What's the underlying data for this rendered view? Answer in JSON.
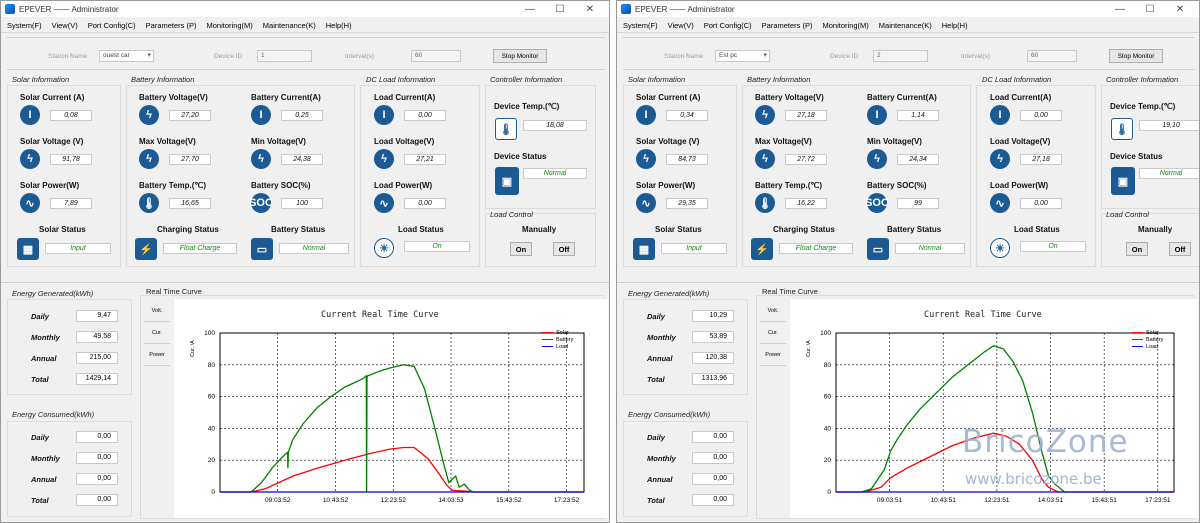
{
  "windows": [
    {
      "id": "L",
      "title": "EPEVER —— Administrator",
      "menu": [
        "System(F)",
        "View(V)",
        "Port Config(C)",
        "Parameters (P)",
        "Monitoring(M)",
        "Maintenance(K)",
        "Help(H)"
      ],
      "station": {
        "name_label": "Station Name",
        "name_value": "ouest car",
        "device_id_label": "Device ID",
        "device_id_value": "1",
        "interval_label": "Interval(s)",
        "interval_value": "60",
        "stop_button": "Stop Monitor"
      },
      "solar": {
        "title": "Solar Information",
        "current_label": "Solar Current (A)",
        "current": "0,08",
        "voltage_label": "Solar Voltage (V)",
        "voltage": "91,78",
        "power_label": "Solar Power(W)",
        "power": "7,89",
        "status_label": "Solar Status",
        "status": "Input"
      },
      "battery": {
        "title": "Battery Information",
        "voltage_label": "Battery Voltage(V)",
        "voltage": "27,20",
        "current_label": "Battery Current(A)",
        "current": "0,25",
        "max_label": "Max Voltage(V)",
        "max": "27,70",
        "min_label": "Min Voltage(V)",
        "min": "24,38",
        "temp_label": "Battery Temp.(℃)",
        "temp": "16,65",
        "soc_label": "Battery SOC(%)",
        "soc": "100",
        "charging_label": "Charging Status",
        "charging": "Float Charge",
        "status_label": "Battery Status",
        "status": "Normal"
      },
      "load": {
        "title": "DC Load Information",
        "current_label": "Load Current(A)",
        "current": "0,00",
        "voltage_label": "Load Voltage(V)",
        "voltage": "27,21",
        "power_label": "Load Power(W)",
        "power": "0,00",
        "status_label": "Load Status",
        "status": "On"
      },
      "controller": {
        "title": "Controller Information",
        "temp_label": "Device Temp.(℃)",
        "temp": "18,08",
        "status_label": "Device Status",
        "status": "Normal",
        "load_control_title": "Load Control",
        "manually_label": "Manually",
        "on_button": "On",
        "off_button": "Off"
      },
      "generated": {
        "title": "Energy Generated(kWh)",
        "daily_label": "Daily",
        "daily": "9,47",
        "monthly_label": "Monthly",
        "monthly": "49,58",
        "annual_label": "Annual",
        "annual": "215,00",
        "total_label": "Total",
        "total": "1429,14"
      },
      "consumed": {
        "title": "Energy Consumed(kWh)",
        "daily_label": "Daily",
        "daily": "0,00",
        "monthly_label": "Monthly",
        "monthly": "0,00",
        "annual_label": "Annual",
        "annual": "0,00",
        "total_label": "Total",
        "total": "0,00"
      },
      "curve": {
        "group_title": "Real Time Curve",
        "tabs": [
          "Volt.",
          "Cur.",
          "Power"
        ]
      }
    },
    {
      "id": "R",
      "title": "EPEVER —— Administrator",
      "menu": [
        "System(F)",
        "View(V)",
        "Port Config(C)",
        "Parameters (P)",
        "Monitoring(M)",
        "Maintenance(K)",
        "Help(H)"
      ],
      "station": {
        "name_label": "Station Name",
        "name_value": "Est pc",
        "device_id_label": "Device ID",
        "device_id_value": "2",
        "interval_label": "Interval(s)",
        "interval_value": "60",
        "stop_button": "Stop Monitor"
      },
      "solar": {
        "title": "Solar Information",
        "current_label": "Solar Current (A)",
        "current": "0,34",
        "voltage_label": "Solar Voltage (V)",
        "voltage": "84,73",
        "power_label": "Solar Power(W)",
        "power": "29,35",
        "status_label": "Solar Status",
        "status": "Input"
      },
      "battery": {
        "title": "Battery Information",
        "voltage_label": "Battery Voltage(V)",
        "voltage": "27,18",
        "current_label": "Battery Current(A)",
        "current": "1,14",
        "max_label": "Max Voltage(V)",
        "max": "27,72",
        "min_label": "Min Voltage(V)",
        "min": "24,34",
        "temp_label": "Battery Temp.(℃)",
        "temp": "16,22",
        "soc_label": "Battery SOC(%)",
        "soc": "99",
        "charging_label": "Charging Status",
        "charging": "Float Charge",
        "status_label": "Battery Status",
        "status": "Normal"
      },
      "load": {
        "title": "DC Load Information",
        "current_label": "Load Current(A)",
        "current": "0,00",
        "voltage_label": "Load Voltage(V)",
        "voltage": "27,18",
        "power_label": "Load Power(W)",
        "power": "0,00",
        "status_label": "Load Status",
        "status": "On"
      },
      "controller": {
        "title": "Controller Information",
        "temp_label": "Device Temp.(℃)",
        "temp": "19,10",
        "status_label": "Device Status",
        "status": "Normal",
        "load_control_title": "Load Control",
        "manually_label": "Manually",
        "on_button": "On",
        "off_button": "Off"
      },
      "generated": {
        "title": "Energy Generated(kWh)",
        "daily_label": "Daily",
        "daily": "10,29",
        "monthly_label": "Monthly",
        "monthly": "53,89",
        "annual_label": "Annual",
        "annual": "120,38",
        "total_label": "Total",
        "total": "1313,96"
      },
      "consumed": {
        "title": "Energy Consumed(kWh)",
        "daily_label": "Daily",
        "daily": "0,00",
        "monthly_label": "Monthly",
        "monthly": "0,00",
        "annual_label": "Annual",
        "annual": "0,00",
        "total_label": "Total",
        "total": "0,00"
      },
      "curve": {
        "group_title": "Real Time Curve",
        "tabs": [
          "Volt.",
          "Cur.",
          "Power"
        ]
      }
    }
  ],
  "chart_data": [
    {
      "type": "line",
      "title": "Current Real Time Curve",
      "ylabel": "Cur. /A",
      "ylim": [
        0,
        100
      ],
      "yticks": [
        0,
        20,
        40,
        60,
        80,
        100
      ],
      "xticks": [
        "09:03:52",
        "10:43:52",
        "12:23:52",
        "14:03:53",
        "15:43:52",
        "17:23:52"
      ],
      "xlim_hours": [
        7.4,
        17.9
      ],
      "grid": true,
      "legend_position": "top-right",
      "series": [
        {
          "name": "Solar",
          "color": "#ff0000",
          "x_hours": [
            7.4,
            8.3,
            8.7,
            9.0,
            9.5,
            10.2,
            11.0,
            11.7,
            12.3,
            12.7,
            13.0,
            13.4,
            13.7,
            13.95,
            14.1,
            14.5,
            14.7,
            17.9
          ],
          "values": [
            0,
            0,
            2,
            5,
            10,
            15,
            20,
            24,
            27,
            28,
            28,
            21,
            12,
            4,
            1,
            0.5,
            0,
            0
          ]
        },
        {
          "name": "Battery",
          "color": "#008000",
          "x_hours": [
            7.4,
            8.3,
            8.6,
            8.9,
            9.2,
            9.35,
            9.36,
            9.37,
            9.5,
            9.8,
            10.2,
            10.6,
            11.0,
            11.5,
            11.62,
            11.63,
            11.64,
            11.66,
            12.0,
            12.3,
            12.7,
            13.0,
            13.3,
            13.6,
            13.85,
            14.0,
            14.2,
            14.3,
            14.45,
            14.6,
            14.7,
            17.9
          ],
          "values": [
            0,
            0,
            6,
            15,
            22,
            25,
            15,
            25,
            33,
            43,
            53,
            60,
            66,
            71,
            73,
            0,
            72,
            73,
            76,
            78,
            80,
            79,
            65,
            40,
            18,
            6,
            10,
            3,
            5,
            1,
            0,
            0
          ]
        },
        {
          "name": "Load",
          "color": "#0000ff",
          "x_hours": [
            7.4,
            17.9
          ],
          "values": [
            0,
            0
          ]
        }
      ]
    },
    {
      "type": "line",
      "title": "Current Real Time Curve",
      "ylabel": "Cur. /A",
      "ylim": [
        0,
        100
      ],
      "yticks": [
        0,
        20,
        40,
        60,
        80,
        100
      ],
      "xticks": [
        "09:03:51",
        "10:43:51",
        "12:23:51",
        "14:03:51",
        "15:43:51",
        "17:23:51"
      ],
      "xlim_hours": [
        7.4,
        17.9
      ],
      "grid": true,
      "legend_position": "top-right",
      "series": [
        {
          "name": "Solar",
          "color": "#ff0000",
          "x_hours": [
            7.4,
            8.3,
            8.8,
            9.1,
            9.6,
            10.3,
            11.0,
            11.7,
            12.3,
            12.7,
            13.1,
            13.5,
            13.8,
            14.0,
            14.3,
            17.9
          ],
          "values": [
            0,
            0,
            3,
            9,
            15,
            22,
            29,
            34,
            37,
            35,
            30,
            20,
            8,
            3,
            0,
            0
          ]
        },
        {
          "name": "Battery",
          "color": "#008000",
          "x_hours": [
            7.4,
            8.2,
            8.5,
            8.7,
            8.9,
            9.1,
            9.3,
            9.6,
            10.0,
            10.5,
            11.0,
            11.5,
            12.0,
            12.3,
            12.6,
            12.9,
            13.2,
            13.5,
            13.8,
            14.0,
            14.2,
            14.5,
            17.9
          ],
          "values": [
            0,
            0,
            2,
            8,
            14,
            26,
            33,
            42,
            52,
            62,
            72,
            80,
            88,
            92,
            90,
            82,
            70,
            50,
            25,
            10,
            5,
            0,
            0
          ]
        },
        {
          "name": "Load",
          "color": "#0000ff",
          "x_hours": [
            7.4,
            17.9
          ],
          "values": [
            0,
            0
          ]
        }
      ]
    }
  ],
  "watermark": {
    "brand": "BricoZone",
    "url": "www.bricozone.be"
  }
}
